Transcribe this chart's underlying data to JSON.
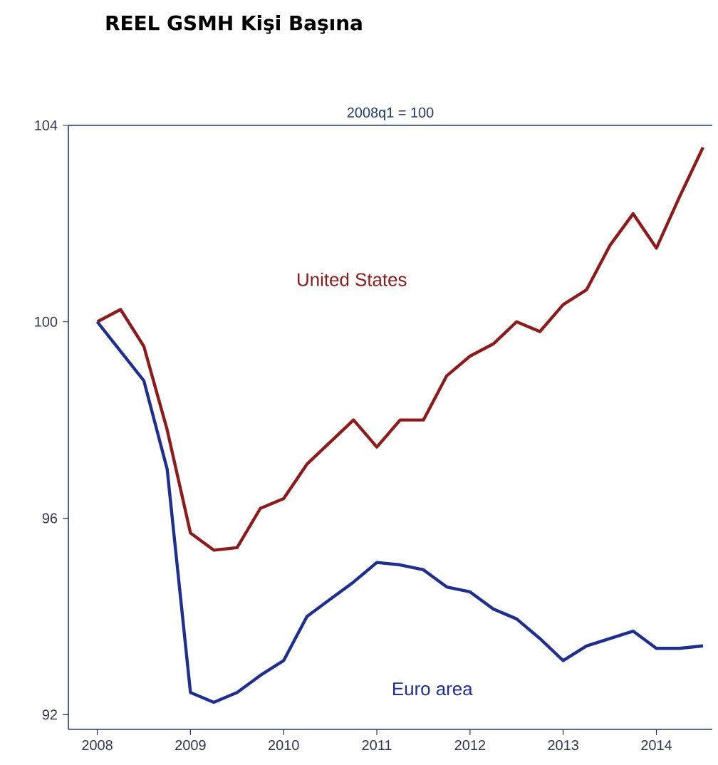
{
  "chart_data": {
    "type": "line",
    "title": "REEL GSMH Kişi Başına",
    "subtitle": "2008q1 = 100",
    "x": [
      2008,
      2008.25,
      2008.5,
      2008.75,
      2009,
      2009.25,
      2009.5,
      2009.75,
      2010,
      2010.25,
      2010.5,
      2010.75,
      2011,
      2011.25,
      2011.5,
      2011.75,
      2012,
      2012.25,
      2012.5,
      2012.75,
      2013,
      2013.25,
      2013.5,
      2013.75,
      2014,
      2014.25,
      2014.5
    ],
    "series": [
      {
        "name": "United States",
        "color": "#8e1b1b",
        "values": [
          100,
          100.25,
          99.5,
          97.8,
          95.7,
          95.35,
          95.4,
          96.2,
          96.4,
          97.1,
          97.55,
          98.0,
          97.45,
          98.0,
          98.0,
          98.9,
          99.3,
          99.55,
          100,
          99.8,
          100.35,
          100.65,
          101.55,
          102.2,
          101.5,
          102.55,
          103.55
        ]
      },
      {
        "name": "Euro area",
        "color": "#1f2f8f",
        "values": [
          100,
          99.4,
          98.8,
          97.0,
          92.45,
          92.25,
          92.45,
          92.8,
          93.1,
          94.0,
          94.35,
          94.7,
          95.1,
          95.05,
          94.95,
          94.6,
          94.5,
          94.15,
          93.95,
          93.55,
          93.1,
          93.4,
          93.55,
          93.7,
          93.35,
          93.35,
          93.4
        ]
      }
    ],
    "xlim": [
      2007.69,
      2014.6
    ],
    "ylim": [
      91.7,
      104
    ],
    "xticks": [
      2008,
      2009,
      2010,
      2011,
      2012,
      2013,
      2014
    ],
    "yticks": [
      92,
      96,
      100,
      104
    ],
    "grid": false,
    "legend": false,
    "marker": "none",
    "line_style": "solid"
  }
}
